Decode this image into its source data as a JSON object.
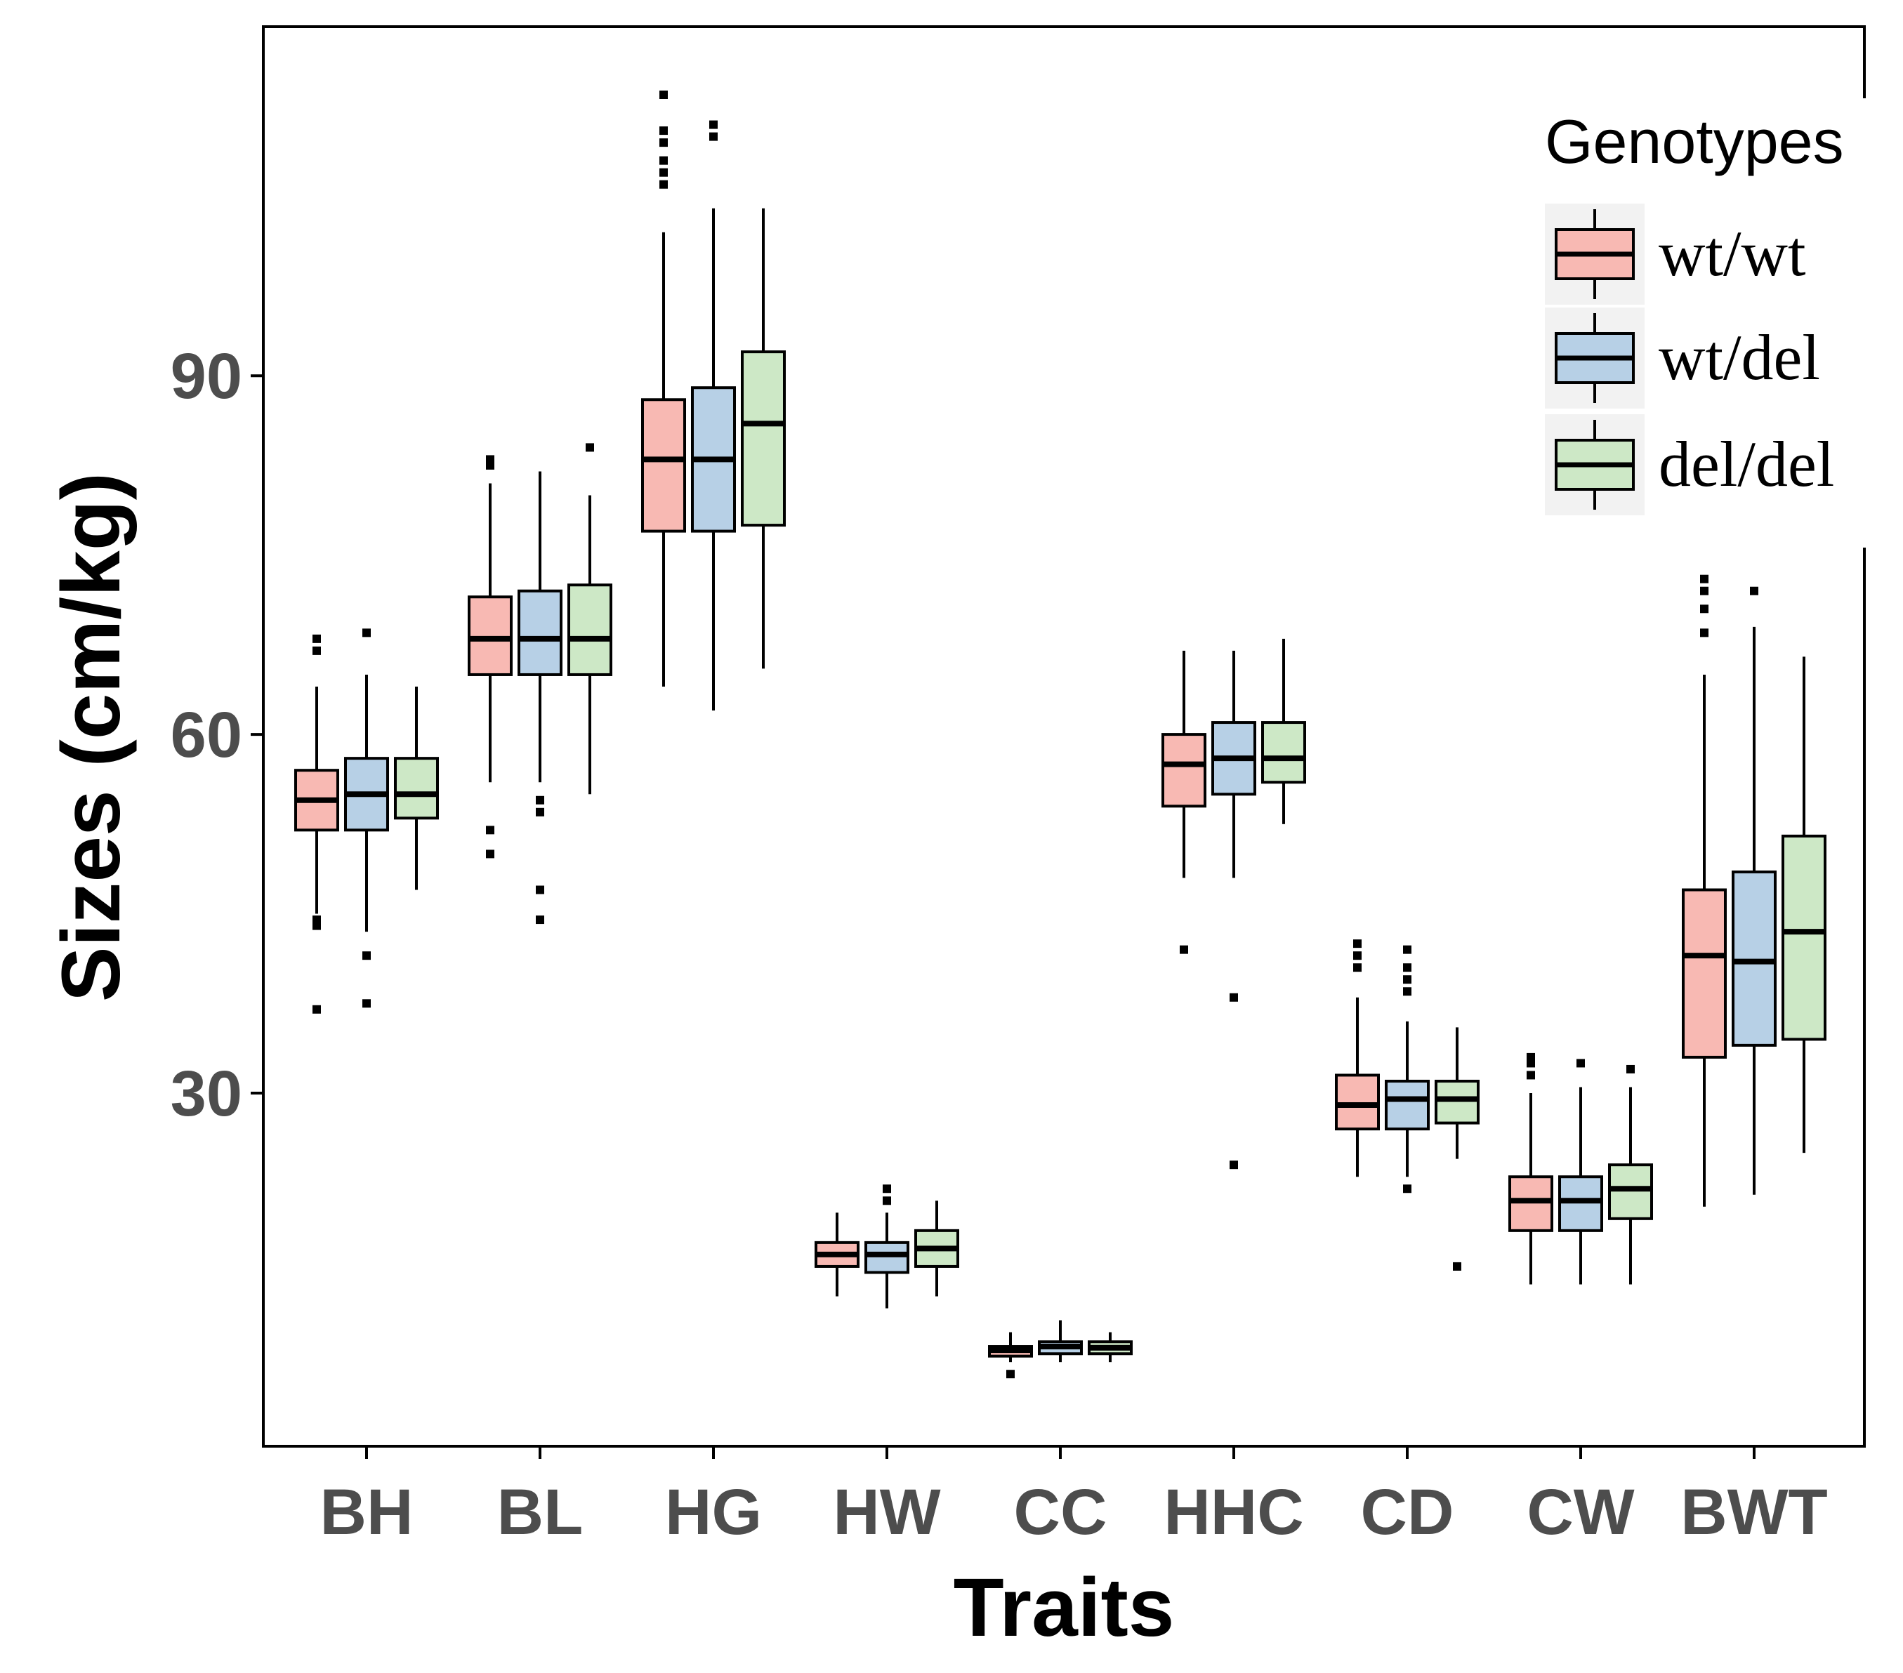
{
  "chart_data": {
    "type": "boxplot",
    "title": "",
    "xlabel": "Traits",
    "ylabel": "Sizes (cm/kg)",
    "ylim": [
      -1.5,
      117
    ],
    "yticks": [
      30,
      60,
      90
    ],
    "categories": [
      "BH",
      "BL",
      "HG",
      "HW",
      "CC",
      "HHC",
      "CD",
      "CW",
      "BWT"
    ],
    "legend": {
      "title": "Genotypes",
      "position": "top-right"
    },
    "series": [
      {
        "name": "wt/wt",
        "color": "#F8B9B3",
        "boxes": [
          {
            "low": 45,
            "q1": 52,
            "median": 54.5,
            "q3": 57,
            "high": 64,
            "outliers": [
              37,
              44,
              44.5,
              67,
              68
            ]
          },
          {
            "low": 56,
            "q1": 65,
            "median": 68,
            "q3": 71.5,
            "high": 81,
            "outliers": [
              50,
              52,
              82.5,
              83
            ]
          },
          {
            "low": 64,
            "q1": 77,
            "median": 83,
            "q3": 88,
            "high": 102,
            "outliers": [
              106,
              107,
              108,
              109.5,
              110.5,
              113.5
            ]
          },
          {
            "low": 13,
            "q1": 15.5,
            "median": 16.5,
            "q3": 17.5,
            "high": 20,
            "outliers": []
          },
          {
            "low": 7.5,
            "q1": 8,
            "median": 8.5,
            "q3": 8.8,
            "high": 10,
            "outliers": [
              6.5
            ]
          },
          {
            "low": 48,
            "q1": 54,
            "median": 57.5,
            "q3": 60,
            "high": 67,
            "outliers": [
              42
            ]
          },
          {
            "low": 23,
            "q1": 27,
            "median": 29,
            "q3": 31.5,
            "high": 38,
            "outliers": [
              40.5,
              41.5,
              42.5
            ]
          },
          {
            "low": 14,
            "q1": 18.5,
            "median": 21,
            "q3": 23,
            "high": 30,
            "outliers": [
              31.5,
              32.5,
              33
            ]
          },
          {
            "low": 20.5,
            "q1": 33,
            "median": 41.5,
            "q3": 47,
            "high": 65,
            "outliers": [
              68.5,
              70.5,
              72,
              73
            ]
          }
        ]
      },
      {
        "name": "wt/del",
        "color": "#B7D0E6",
        "boxes": [
          {
            "low": 43.5,
            "q1": 52,
            "median": 55,
            "q3": 58,
            "high": 65,
            "outliers": [
              37.5,
              41.5,
              68.5
            ]
          },
          {
            "low": 56,
            "q1": 65,
            "median": 68,
            "q3": 72,
            "high": 82,
            "outliers": [
              44.5,
              47,
              53.5,
              54.5
            ]
          },
          {
            "low": 62,
            "q1": 77,
            "median": 83,
            "q3": 89,
            "high": 104,
            "outliers": [
              110,
              111
            ]
          },
          {
            "low": 12,
            "q1": 15,
            "median": 16.5,
            "q3": 17.5,
            "high": 20,
            "outliers": [
              21,
              22
            ]
          },
          {
            "low": 7.5,
            "q1": 8.2,
            "median": 8.8,
            "q3": 9.2,
            "high": 11,
            "outliers": []
          },
          {
            "low": 48,
            "q1": 55,
            "median": 58,
            "q3": 61,
            "high": 67,
            "outliers": [
              24,
              38
            ]
          },
          {
            "low": 23,
            "q1": 27,
            "median": 29.5,
            "q3": 31,
            "high": 36,
            "outliers": [
              22,
              38.5,
              39.5,
              40.5,
              42
            ]
          },
          {
            "low": 14,
            "q1": 18.5,
            "median": 21,
            "q3": 23,
            "high": 30.5,
            "outliers": [
              32.5
            ]
          },
          {
            "low": 21.5,
            "q1": 34,
            "median": 41,
            "q3": 48.5,
            "high": 69,
            "outliers": [
              72
            ]
          }
        ]
      },
      {
        "name": "del/del",
        "color": "#CDE8C6",
        "boxes": [
          {
            "low": 47,
            "q1": 53,
            "median": 55,
            "q3": 58,
            "high": 64,
            "outliers": []
          },
          {
            "low": 55,
            "q1": 65,
            "median": 68,
            "q3": 72.5,
            "high": 80,
            "outliers": [
              84
            ]
          },
          {
            "low": 65.5,
            "q1": 77.5,
            "median": 86,
            "q3": 92,
            "high": 104,
            "outliers": []
          },
          {
            "low": 13,
            "q1": 15.5,
            "median": 17,
            "q3": 18.5,
            "high": 21,
            "outliers": []
          },
          {
            "low": 7.5,
            "q1": 8.2,
            "median": 8.7,
            "q3": 9.2,
            "high": 10,
            "outliers": []
          },
          {
            "low": 52.5,
            "q1": 56,
            "median": 58,
            "q3": 61,
            "high": 68,
            "outliers": []
          },
          {
            "low": 24.5,
            "q1": 27.5,
            "median": 29.5,
            "q3": 31,
            "high": 35.5,
            "outliers": [
              15.5
            ]
          },
          {
            "low": 14,
            "q1": 19.5,
            "median": 22,
            "q3": 24,
            "high": 30.5,
            "outliers": [
              32
            ]
          },
          {
            "low": 25,
            "q1": 34.5,
            "median": 43.5,
            "q3": 51.5,
            "high": 66.5,
            "outliers": []
          }
        ]
      }
    ]
  }
}
